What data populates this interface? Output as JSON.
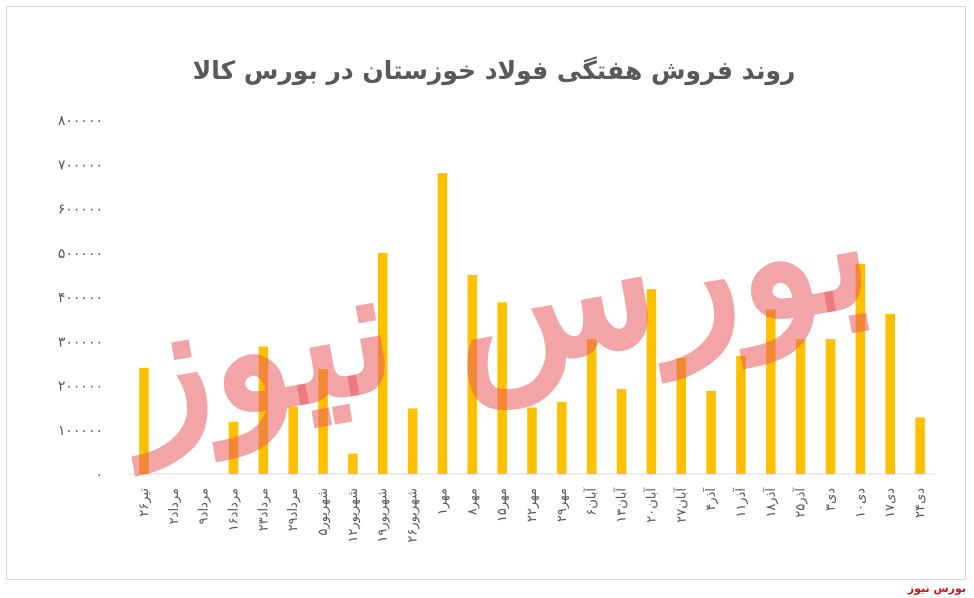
{
  "chart_data": {
    "type": "bar",
    "title": "روند فروش هفتگی فولاد خوزستان در بورس کالا",
    "xlabel": "",
    "ylabel": "",
    "ylim": [
      0,
      800000
    ],
    "yticks": [
      "۰",
      "۱۰۰۰۰۰",
      "۲۰۰۰۰۰",
      "۳۰۰۰۰۰",
      "۴۰۰۰۰۰",
      "۵۰۰۰۰۰",
      "۶۰۰۰۰۰",
      "۷۰۰۰۰۰",
      "۸۰۰۰۰۰"
    ],
    "ytick_values": [
      0,
      100000,
      200000,
      300000,
      400000,
      500000,
      600000,
      700000,
      800000
    ],
    "categories": [
      "۲۶تیر",
      "۲مرداد",
      "۹مرداد",
      "۱۶مرداد",
      "۲۳مرداد",
      "۲۹مرداد",
      "۵شهریور",
      "۱۲شهریور",
      "۱۹شهریور",
      "۲۶شهریور",
      "۱مهر",
      "۸مهر",
      "۱۵مهر",
      "۲۲مهر",
      "۲۹مهر",
      "۶آبان",
      "۱۳آبان",
      "۲۰آبان",
      "۲۷آبان",
      "۴آذر",
      "۱۱آذر",
      "۱۸آذر",
      "۲۵آذر",
      "۳دی",
      "۱۰دی",
      "۱۷دی",
      "۲۴دی"
    ],
    "values": [
      240000,
      0,
      0,
      118000,
      288000,
      152000,
      237000,
      46000,
      500000,
      148000,
      680000,
      450000,
      388000,
      150000,
      163000,
      305000,
      192000,
      418000,
      262000,
      188000,
      267000,
      372000,
      305000,
      305000,
      475000,
      362000,
      128000
    ],
    "bar_color": "#ffc000",
    "grid": false,
    "legend": "none"
  },
  "watermark": {
    "text": "بورس نیوز",
    "color": "#e8595f"
  },
  "brand": {
    "text": "بورس نیوز",
    "color": "#c8141e"
  }
}
